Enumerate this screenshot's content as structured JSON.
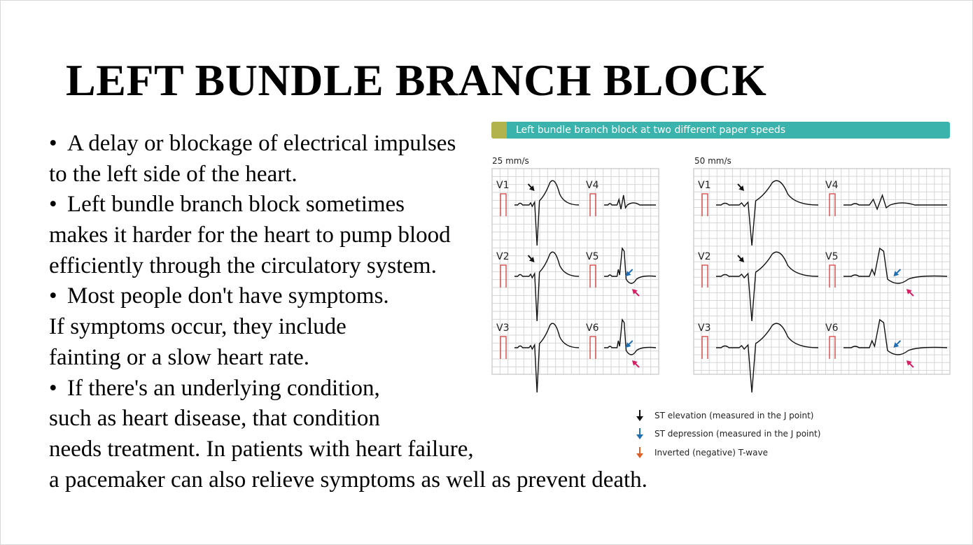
{
  "slide": {
    "title": "LEFT BUNDLE BRANCH BLOCK",
    "body_lines": [
      {
        "bullet": true,
        "text": "A delay or blockage of electrical impulses"
      },
      {
        "bullet": false,
        "text": " to the left side of the heart."
      },
      {
        "bullet": true,
        "text": "Left bundle branch block sometimes"
      },
      {
        "bullet": false,
        "text": "makes it harder for the heart to pump blood"
      },
      {
        "bullet": false,
        "text": "efficiently through the circulatory system."
      },
      {
        "bullet": true,
        "text": "Most people don't have symptoms."
      },
      {
        "bullet": false,
        "text": "If symptoms occur, they include"
      },
      {
        "bullet": false,
        "text": "fainting or a slow heart rate."
      },
      {
        "bullet": true,
        "text": "If there's an underlying condition,"
      },
      {
        "bullet": false,
        "text": "such as heart disease, that condition"
      },
      {
        "bullet": false,
        "text": "needs treatment. In patients with heart failure,"
      },
      {
        "bullet": false,
        "text": "a pacemaker can also relieve symptoms as well as prevent death."
      }
    ],
    "bullet_char": "•"
  },
  "figure": {
    "banner_text": "Left bundle branch block at two different paper speeds",
    "speed_labels": [
      "25 mm/s",
      "50 mm/s"
    ],
    "leads": [
      "V1",
      "V4",
      "V2",
      "V5",
      "V3",
      "V6"
    ],
    "legend": [
      {
        "text": "ST elevation (measured in the J point)",
        "color": "#111111"
      },
      {
        "text": "ST depression (measured in the J point)",
        "color": "#1f6fb2"
      },
      {
        "text": "Inverted (negative) T-wave",
        "color": "#e0602a"
      }
    ],
    "colors": {
      "banner": "#3ab3ad",
      "banner_accent": "#b3b34e",
      "grid": "#d6d6d6",
      "calibration": "#d43b3b",
      "trace": "#111111",
      "arrow_black": "#111111",
      "arrow_blue": "#1f6fb2",
      "arrow_magenta": "#d61f63"
    }
  }
}
